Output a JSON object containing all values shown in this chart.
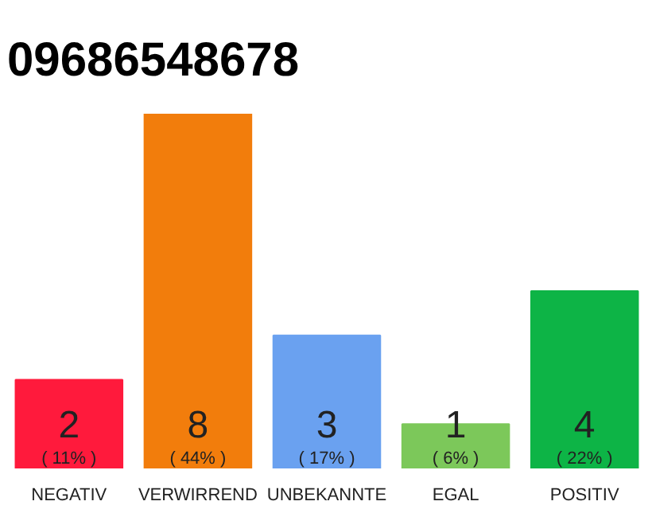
{
  "chart_data": {
    "type": "bar",
    "title": "09686548678",
    "categories": [
      "NEGATIV",
      "VERWIRREND",
      "UNBEKANNTE",
      "EGAL",
      "POSITIV"
    ],
    "values": [
      2,
      8,
      3,
      1,
      4
    ],
    "colors": [
      "#ff1a3c",
      "#f27d0c",
      "#6aa1f0",
      "#7cc85a",
      "#0db446"
    ],
    "value_labels": [
      "2\n( 11% )",
      "8\n( 44% )",
      "3\n( 17% )",
      "1\n( 6% )",
      "4\n( 22% )"
    ],
    "grid": false
  }
}
